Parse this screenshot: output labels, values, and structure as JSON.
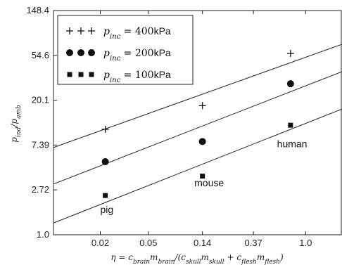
{
  "chart_data": {
    "type": "scatter",
    "xlabel": "η = c_brain m_brain / (c_skull m_skull + c_flesh m_flesh)",
    "ylabel": "p_ind / p_amb",
    "x_scale": "log",
    "y_scale": "log",
    "xlim": [
      0.0082,
      2.0
    ],
    "ylim": [
      1.0,
      148.4
    ],
    "x_ticks": [
      0.02,
      0.05,
      0.14,
      0.37,
      1.0
    ],
    "x_tick_labels": [
      "0.02",
      "0.05",
      "0.14",
      "0.37",
      "1.0"
    ],
    "y_ticks": [
      1.0,
      2.72,
      7.39,
      20.1,
      54.6,
      148.4
    ],
    "y_tick_labels": [
      "1.0",
      "2.72",
      "7.39",
      "20.1",
      "54.6",
      "148.4"
    ],
    "grid": false,
    "legend_position": "top-left",
    "series": [
      {
        "name": "p_inc = 400kPa",
        "legend_label": "p",
        "legend_sub": "inc",
        "legend_value": " = 400",
        "legend_unit": "kPa",
        "marker": "plus",
        "x": [
          0.022,
          0.14,
          0.75
        ],
        "y": [
          10.5,
          17.8,
          57.0
        ],
        "fit": [
          [
            0.0082,
            7.0
          ],
          [
            2.0,
            70.0
          ]
        ]
      },
      {
        "name": "p_inc = 200kPa",
        "legend_label": "p",
        "legend_sub": "inc",
        "legend_value": " = 200",
        "legend_unit": "kPa",
        "marker": "circle",
        "x": [
          0.022,
          0.14,
          0.75
        ],
        "y": [
          5.1,
          8.0,
          29.0
        ],
        "fit": [
          [
            0.0082,
            3.1
          ],
          [
            2.0,
            38.0
          ]
        ]
      },
      {
        "name": "p_inc = 100kPa",
        "legend_label": "p",
        "legend_sub": "inc",
        "legend_value": " = 100",
        "legend_unit": "kPa",
        "marker": "square",
        "x": [
          0.022,
          0.14,
          0.75
        ],
        "y": [
          2.4,
          3.7,
          11.5
        ],
        "fit": [
          [
            0.0082,
            1.3
          ],
          [
            2.0,
            16.5
          ]
        ]
      }
    ],
    "annotations": [
      {
        "text": "pig",
        "x": 0.02,
        "y": 1.62
      },
      {
        "text": "mouse",
        "x": 0.12,
        "y": 2.95
      },
      {
        "text": "human",
        "x": 0.58,
        "y": 7.05
      }
    ]
  }
}
